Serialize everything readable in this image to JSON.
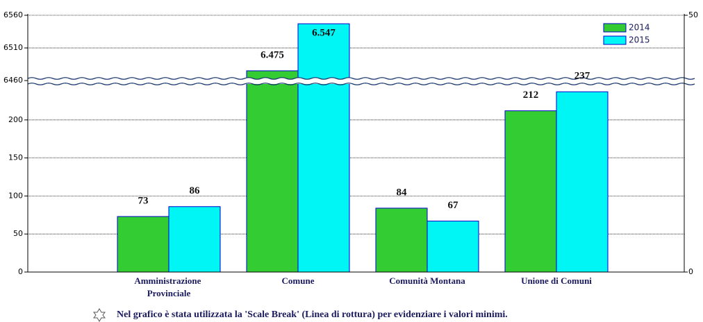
{
  "chart_data": {
    "type": "bar",
    "categories": [
      "Amministrazione Provinciale",
      "Comune",
      "Comunità Montana",
      "Unione di Comuni"
    ],
    "series": [
      {
        "name": "2014",
        "color": "#33cc33",
        "values": [
          73,
          6475,
          84,
          212
        ],
        "value_labels": [
          "73",
          "6.475",
          "84",
          "212"
        ]
      },
      {
        "name": "2015",
        "color": "#00f5f5",
        "values": [
          86,
          6547,
          67,
          237
        ],
        "value_labels": [
          "86",
          "6.547",
          "67",
          "237"
        ]
      }
    ],
    "ylim": [
      0,
      6560
    ],
    "scale_break": [
      250,
      6458
    ],
    "yticks": [
      0,
      50,
      100,
      150,
      200,
      6460,
      6510,
      6560
    ],
    "y2lim": [
      0,
      50
    ],
    "y2ticks": [
      0,
      50
    ],
    "grid": true,
    "legend": "top-right",
    "note": "Nel grafico è stata utilizzata la 'Scale Break' (Linea di rottura) per evidenziare i valori minimi."
  }
}
